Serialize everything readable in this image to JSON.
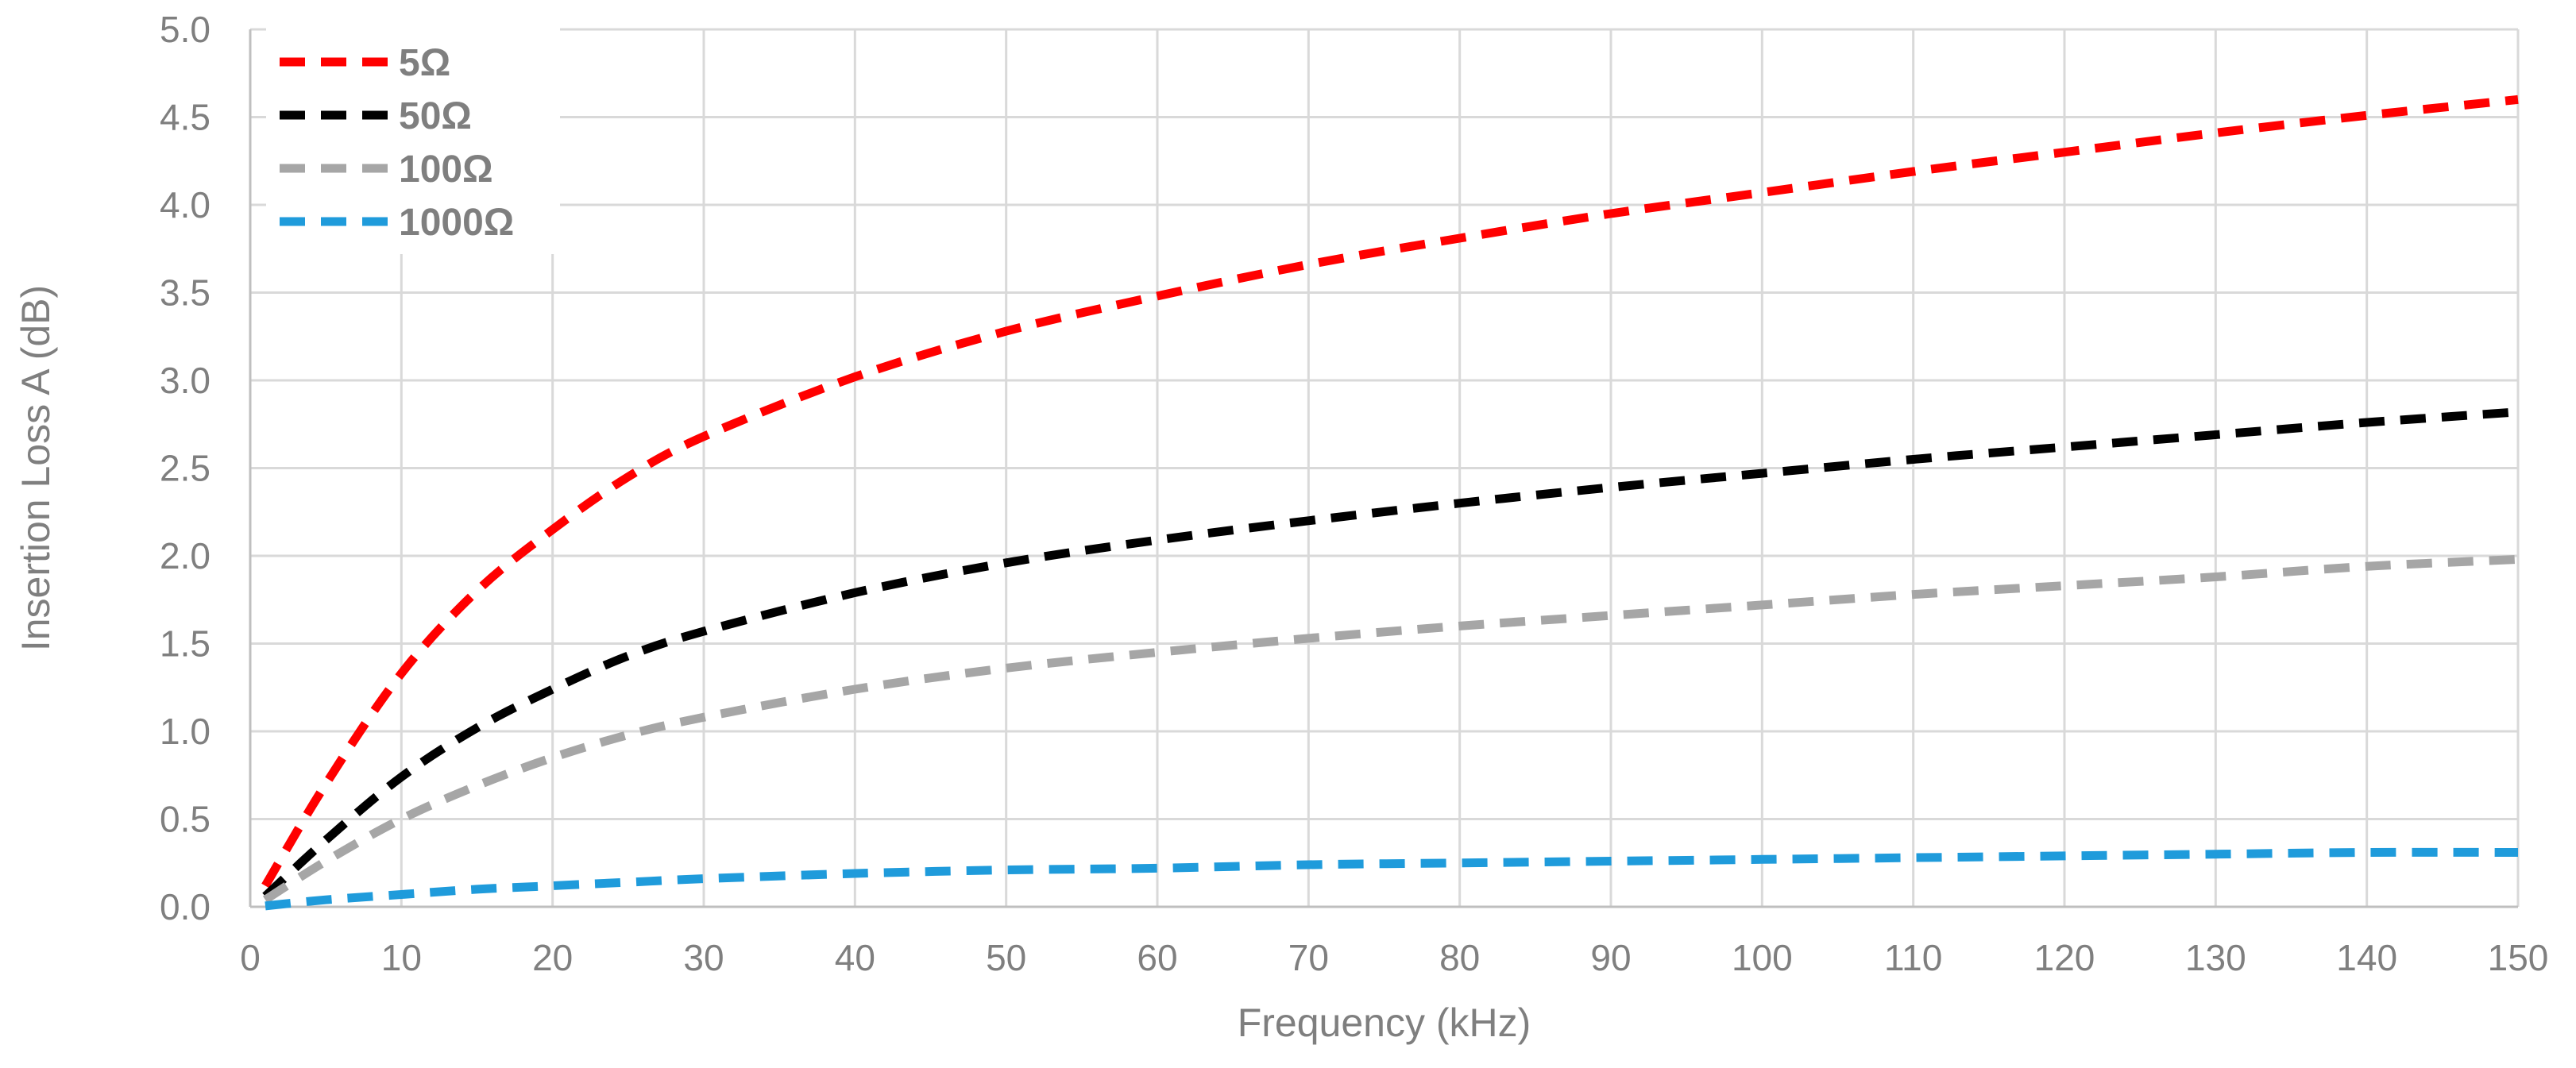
{
  "chart_data": {
    "type": "line",
    "title": "",
    "xlabel": "Frequency (kHz)",
    "ylabel": "Insertion Loss A (dB)",
    "xlim": [
      0,
      150
    ],
    "ylim": [
      0,
      5.0
    ],
    "x_ticks": [
      "0",
      "10",
      "20",
      "30",
      "40",
      "50",
      "60",
      "70",
      "80",
      "90",
      "100",
      "110",
      "120",
      "130",
      "140",
      "150"
    ],
    "y_ticks": [
      "0.0",
      "0.5",
      "1.0",
      "1.5",
      "2.0",
      "2.5",
      "3.0",
      "3.5",
      "4.0",
      "4.5",
      "5.0"
    ],
    "grid": true,
    "legend_position": "top-left",
    "x": [
      1,
      5,
      10,
      15,
      20,
      25,
      30,
      40,
      50,
      60,
      70,
      80,
      90,
      100,
      110,
      120,
      130,
      140,
      150
    ],
    "series": [
      {
        "name": "5Ω",
        "color": "#ff0000",
        "values": [
          0.12,
          0.7,
          1.33,
          1.8,
          2.15,
          2.45,
          2.68,
          3.02,
          3.28,
          3.48,
          3.66,
          3.81,
          3.95,
          4.07,
          4.19,
          4.3,
          4.41,
          4.51,
          4.6
        ]
      },
      {
        "name": "50Ω",
        "color": "#000000",
        "values": [
          0.06,
          0.38,
          0.74,
          1.02,
          1.24,
          1.43,
          1.57,
          1.79,
          1.96,
          2.09,
          2.2,
          2.3,
          2.39,
          2.47,
          2.55,
          2.62,
          2.69,
          2.76,
          2.82
        ]
      },
      {
        "name": "100Ω",
        "color": "#a6a6a6",
        "values": [
          0.04,
          0.26,
          0.5,
          0.69,
          0.85,
          0.98,
          1.08,
          1.24,
          1.36,
          1.45,
          1.53,
          1.6,
          1.66,
          1.72,
          1.78,
          1.83,
          1.88,
          1.94,
          1.98
        ]
      },
      {
        "name": "1000Ω",
        "color": "#1f9bdb",
        "values": [
          0.005,
          0.04,
          0.07,
          0.1,
          0.12,
          0.14,
          0.16,
          0.19,
          0.21,
          0.22,
          0.24,
          0.25,
          0.26,
          0.27,
          0.28,
          0.29,
          0.3,
          0.31,
          0.31
        ]
      }
    ]
  }
}
